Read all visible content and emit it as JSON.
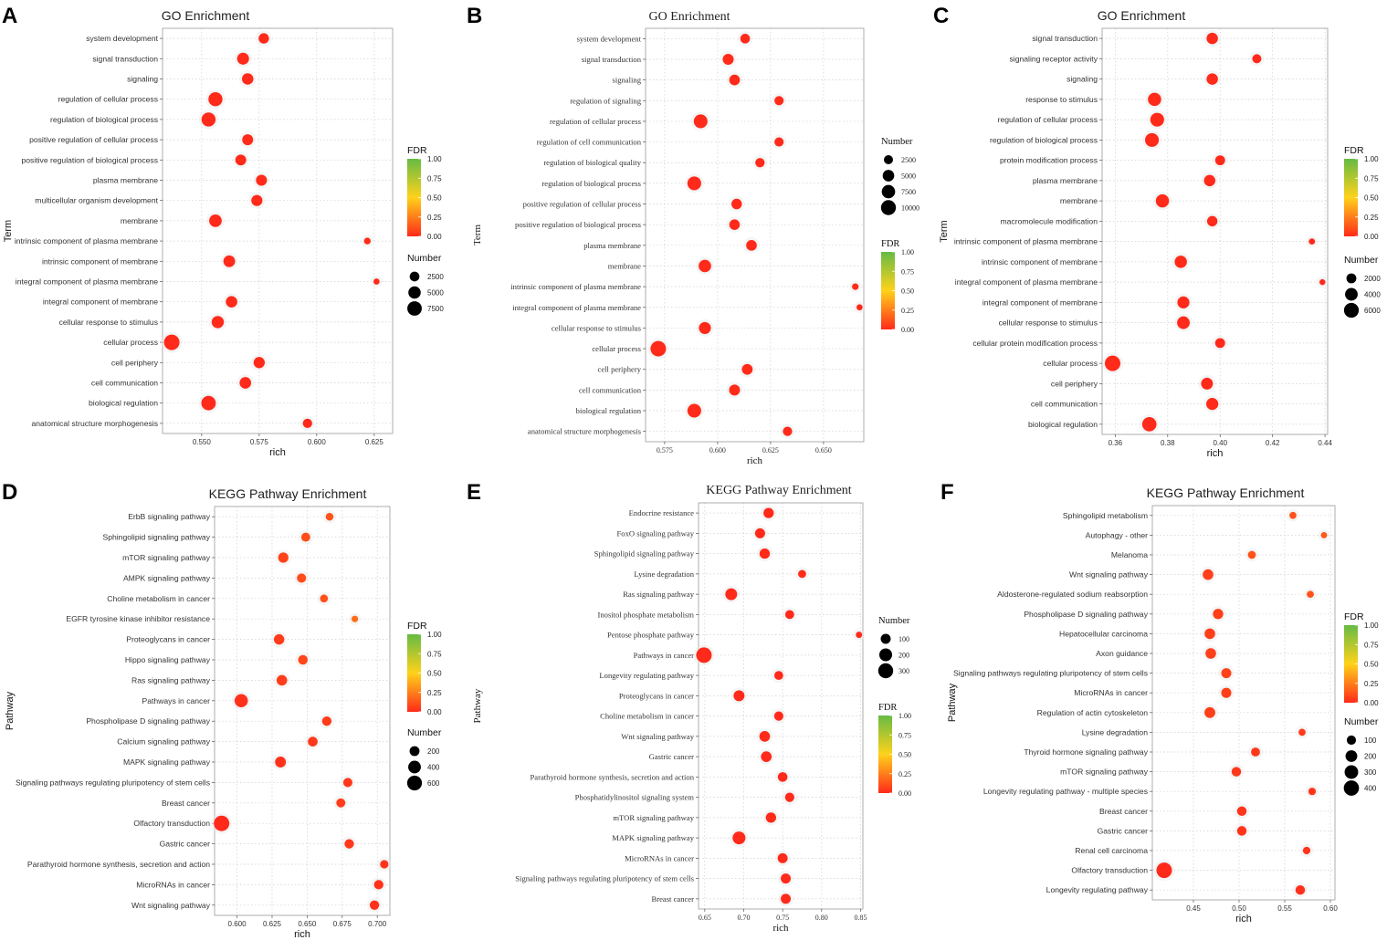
{
  "colors": {
    "high": "#66bb44",
    "mid": "#ffd21a",
    "low": "#ff2a1a"
  },
  "panels": [
    {
      "letter": "A",
      "font": "sans",
      "chart_data": {
        "type": "scatter",
        "title": "GO Enrichment",
        "xlabel": "rich",
        "ylabel": "Term",
        "xlim": [
          0.533,
          0.633
        ],
        "xticks": [
          0.55,
          0.575,
          0.6,
          0.625
        ],
        "xtick_labels": [
          "0.550",
          "0.575",
          "0.600",
          "0.625"
        ],
        "categories": [
          "system development",
          "signal transduction",
          "signaling",
          "regulation of cellular process",
          "regulation of biological process",
          "positive regulation of cellular process",
          "positive regulation of biological process",
          "plasma membrane",
          "multicellular organism development",
          "membrane",
          "intrinsic component of plasma membrane",
          "intrinsic component of membrane",
          "integral component of plasma membrane",
          "integral component of membrane",
          "cellular response to stimulus",
          "cellular process",
          "cell periphery",
          "cell communication",
          "biological regulation",
          "anatomical structure morphogenesis"
        ],
        "rich": [
          0.577,
          0.568,
          0.57,
          0.556,
          0.553,
          0.57,
          0.567,
          0.576,
          0.574,
          0.556,
          0.622,
          0.562,
          0.626,
          0.563,
          0.557,
          0.537,
          0.575,
          0.569,
          0.553,
          0.596
        ],
        "number": [
          3000,
          4500,
          4000,
          7000,
          7000,
          3500,
          3500,
          3600,
          3700,
          5200,
          700,
          4300,
          500,
          4000,
          4800,
          9000,
          3800,
          4100,
          7500,
          2200
        ],
        "fdr": [
          0.0,
          0.0,
          0.0,
          0.0,
          0.0,
          0.0,
          0.0,
          0.0,
          0.0,
          0.0,
          0.0,
          0.0,
          0.0,
          0.0,
          0.0,
          0.0,
          0.0,
          0.0,
          0.0,
          0.0
        ],
        "legend_fdr": {
          "title": "FDR",
          "ticks": [
            "1.00",
            "0.75",
            "0.50",
            "0.25",
            "0.00"
          ]
        },
        "legend_size": {
          "title": "Number",
          "values": [
            2500,
            5000,
            7500
          ],
          "labels": [
            "2500",
            "5000",
            "7500"
          ]
        }
      }
    },
    {
      "letter": "B",
      "font": "serif",
      "chart_data": {
        "type": "scatter",
        "title": "GO Enrichment",
        "xlabel": "rich",
        "ylabel": "Term",
        "xlim": [
          0.566,
          0.669
        ],
        "xticks": [
          0.575,
          0.6,
          0.625,
          0.65
        ],
        "xtick_labels": [
          "0.575",
          "0.600",
          "0.625",
          "0.650"
        ],
        "categories": [
          "system development",
          "signal transduction",
          "signaling",
          "regulation of signaling",
          "regulation of cellular process",
          "regulation of cell communication",
          "regulation of biological quality",
          "regulation of biological process",
          "positive regulation of cellular process",
          "positive regulation of biological process",
          "plasma membrane",
          "membrane",
          "intrinsic component of plasma membrane",
          "integral component of plasma membrane",
          "cellular response to stimulus",
          "cellular process",
          "cell periphery",
          "cell communication",
          "biological regulation",
          "anatomical structure morphogenesis"
        ],
        "rich": [
          0.613,
          0.605,
          0.608,
          0.629,
          0.592,
          0.629,
          0.62,
          0.589,
          0.609,
          0.608,
          0.616,
          0.594,
          0.665,
          0.667,
          0.594,
          0.572,
          0.614,
          0.608,
          0.589,
          0.633
        ],
        "number": [
          3000,
          4300,
          4000,
          2600,
          8000,
          2600,
          2700,
          8000,
          3800,
          3800,
          4000,
          6200,
          800,
          600,
          5600,
          11000,
          4100,
          4300,
          8000,
          2700
        ],
        "fdr": [
          0.0,
          0.0,
          0.0,
          0.0,
          0.0,
          0.0,
          0.0,
          0.0,
          0.0,
          0.0,
          0.0,
          0.0,
          0.0,
          0.0,
          0.0,
          0.0,
          0.0,
          0.0,
          0.0,
          0.0
        ],
        "legend_fdr": {
          "title": "FDR",
          "ticks": [
            "1.00",
            "0.75",
            "0.50",
            "0.25",
            "0.00"
          ]
        },
        "legend_size": {
          "title": "Number",
          "values": [
            2500,
            5000,
            7500,
            10000
          ],
          "labels": [
            "2500",
            "5000",
            "7500",
            "10000"
          ]
        }
      }
    },
    {
      "letter": "C",
      "font": "sans",
      "chart_data": {
        "type": "scatter",
        "title": "GO Enrichment",
        "xlabel": "rich",
        "ylabel": "Term",
        "xlim": [
          0.355,
          0.441
        ],
        "xticks": [
          0.36,
          0.38,
          0.4,
          0.42,
          0.44
        ],
        "xtick_labels": [
          "0.36",
          "0.38",
          "0.40",
          "0.42",
          "0.44"
        ],
        "categories": [
          "signal transduction",
          "signaling receptor activity",
          "signaling",
          "response to stimulus",
          "regulation of cellular process",
          "regulation of biological process",
          "protein modification process",
          "plasma membrane",
          "membrane",
          "macromolecule modification",
          "intrinsic component of plasma membrane",
          "intrinsic component of membrane",
          "integral component of plasma membrane",
          "integral component of membrane",
          "cellular response to stimulus",
          "cellular protein modification process",
          "cellular process",
          "cell periphery",
          "cell communication",
          "biological regulation"
        ],
        "rich": [
          0.397,
          0.414,
          0.397,
          0.375,
          0.376,
          0.374,
          0.4,
          0.396,
          0.378,
          0.397,
          0.435,
          0.385,
          0.439,
          0.386,
          0.386,
          0.4,
          0.359,
          0.395,
          0.397,
          0.373
        ],
        "number": [
          3000,
          1500,
          3000,
          4500,
          5000,
          5000,
          2000,
          3000,
          4500,
          2300,
          400,
          3700,
          300,
          3500,
          4000,
          2000,
          6800,
          3300,
          3500,
          5500
        ],
        "fdr": [
          0.0,
          0.0,
          0.0,
          0.0,
          0.0,
          0.0,
          0.0,
          0.0,
          0.0,
          0.0,
          0.0,
          0.0,
          0.0,
          0.0,
          0.0,
          0.0,
          0.0,
          0.0,
          0.0,
          0.0
        ],
        "legend_fdr": {
          "title": "FDR",
          "ticks": [
            "1.00",
            "0.75",
            "0.50",
            "0.25",
            "0.00"
          ]
        },
        "legend_size": {
          "title": "Number",
          "values": [
            2000,
            4000,
            6000
          ],
          "labels": [
            "2000",
            "4000",
            "6000"
          ]
        }
      }
    },
    {
      "letter": "D",
      "font": "sans",
      "chart_data": {
        "type": "scatter",
        "title": "KEGG Pathway Enrichment",
        "xlabel": "rich",
        "ylabel": "Pathway",
        "xlim": [
          0.584,
          0.709
        ],
        "xticks": [
          0.6,
          0.625,
          0.65,
          0.675,
          0.7
        ],
        "xtick_labels": [
          "0.600",
          "0.625",
          "0.650",
          "0.675",
          "0.700"
        ],
        "categories": [
          "ErbB signaling pathway",
          "Sphingolipid signaling pathway",
          "mTOR signaling pathway",
          "AMPK signaling pathway",
          "Choline metabolism in cancer",
          "EGFR tyrosine kinase inhibitor resistance",
          "Proteoglycans in cancer",
          "Hippo signaling pathway",
          "Ras signaling pathway",
          "Pathways in cancer",
          "Phospholipase D signaling pathway",
          "Calcium signaling pathway",
          "MAPK signaling pathway",
          "Signaling pathways regulating pluripotency of stem cells",
          "Breast cancer",
          "Olfactory transduction",
          "Gastric cancer",
          "Parathyroid hormone synthesis, secretion and action",
          "MicroRNAs in cancer",
          "Wnt signaling pathway"
        ],
        "rich": [
          0.666,
          0.649,
          0.633,
          0.646,
          0.662,
          0.684,
          0.63,
          0.647,
          0.632,
          0.603,
          0.664,
          0.654,
          0.631,
          0.679,
          0.674,
          0.589,
          0.68,
          0.705,
          0.701,
          0.698
        ],
        "number": [
          90,
          150,
          220,
          160,
          100,
          50,
          230,
          180,
          240,
          450,
          170,
          190,
          260,
          160,
          150,
          680,
          170,
          120,
          170,
          170
        ],
        "fdr": [
          0.12,
          0.1,
          0.07,
          0.1,
          0.12,
          0.2,
          0.05,
          0.08,
          0.05,
          0.02,
          0.05,
          0.04,
          0.02,
          0.04,
          0.05,
          0.0,
          0.04,
          0.03,
          0.02,
          0.02
        ],
        "legend_fdr": {
          "title": "FDR",
          "ticks": [
            "1.00",
            "0.75",
            "0.50",
            "0.25",
            "0.00"
          ]
        },
        "legend_size": {
          "title": "Number",
          "values": [
            200,
            400,
            600
          ],
          "labels": [
            "200",
            "400",
            "600"
          ]
        }
      }
    },
    {
      "letter": "E",
      "font": "serif",
      "chart_data": {
        "type": "scatter",
        "title": "KEGG Pathway Enrichment",
        "xlabel": "rich",
        "ylabel": "Pathway",
        "xlim": [
          0.642,
          0.853
        ],
        "xticks": [
          0.65,
          0.7,
          0.75,
          0.8,
          0.85
        ],
        "xtick_labels": [
          "0.65",
          "0.70",
          "0.75",
          "0.80",
          "0.85"
        ],
        "categories": [
          "Endocrine resistance",
          "FoxO signaling pathway",
          "Sphingolipid signaling pathway",
          "Lysine degradation",
          "Ras signaling pathway",
          "Inositol phosphate metabolism",
          "Pentose phosphate pathway",
          "Pathways in cancer",
          "Longevity regulating pathway",
          "Proteoglycans in cancer",
          "Choline metabolism in cancer",
          "Wnt signaling pathway",
          "Gastric cancer",
          "Parathyroid hormone synthesis, secretion and action",
          "Phosphatidylinositol signaling system",
          "mTOR signaling pathway",
          "MAPK signaling pathway",
          "MicroRNAs in cancer",
          "Signaling pathways regulating pluripotency of stem cells",
          "Breast cancer"
        ],
        "rich": [
          0.732,
          0.721,
          0.727,
          0.775,
          0.684,
          0.759,
          0.848,
          0.649,
          0.745,
          0.694,
          0.745,
          0.727,
          0.729,
          0.75,
          0.759,
          0.735,
          0.694,
          0.75,
          0.754,
          0.754
        ],
        "number": [
          110,
          100,
          110,
          50,
          160,
          70,
          20,
          330,
          70,
          130,
          80,
          120,
          120,
          90,
          80,
          110,
          200,
          100,
          100,
          100
        ],
        "fdr": [
          0.0,
          0.0,
          0.0,
          0.0,
          0.0,
          0.0,
          0.0,
          0.0,
          0.0,
          0.0,
          0.0,
          0.0,
          0.0,
          0.0,
          0.0,
          0.0,
          0.0,
          0.0,
          0.0,
          0.0
        ],
        "legend_fdr": {
          "title": "FDR",
          "ticks": [
            "1.00",
            "0.75",
            "0.50",
            "0.25",
            "0.00"
          ]
        },
        "legend_size": {
          "title": "Number",
          "values": [
            100,
            200,
            300
          ],
          "labels": [
            "100",
            "200",
            "300"
          ]
        }
      }
    },
    {
      "letter": "F",
      "font": "sans",
      "chart_data": {
        "type": "scatter",
        "title": "KEGG Pathway Enrichment",
        "xlabel": "rich",
        "ylabel": "Pathway",
        "xlim": [
          0.405,
          0.605
        ],
        "xticks": [
          0.45,
          0.5,
          0.55,
          0.6
        ],
        "xtick_labels": [
          "0.45",
          "0.50",
          "0.55",
          "0.60"
        ],
        "categories": [
          "Sphingolipid metabolism",
          "Autophagy - other",
          "Melanoma",
          "Wnt signaling pathway",
          "Aldosterone-regulated sodium reabsorption",
          "Phospholipase D signaling pathway",
          "Hepatocellular carcinoma",
          "Axon guidance",
          "Signaling pathways regulating pluripotency of stem cells",
          "MicroRNAs in cancer",
          "Regulation of actin cytoskeleton",
          "Lysine degradation",
          "Thyroid hormone signaling pathway",
          "mTOR signaling pathway",
          "Longevity regulating pathway - multiple species",
          "Breast cancer",
          "Gastric cancer",
          "Renal cell carcinoma",
          "Olfactory transduction",
          "Longevity regulating pathway"
        ],
        "rich": [
          0.559,
          0.593,
          0.514,
          0.466,
          0.578,
          0.477,
          0.468,
          0.469,
          0.486,
          0.486,
          0.468,
          0.569,
          0.518,
          0.497,
          0.58,
          0.503,
          0.503,
          0.574,
          0.418,
          0.567
        ],
        "number": [
          40,
          25,
          60,
          150,
          40,
          140,
          150,
          150,
          130,
          130,
          160,
          40,
          90,
          110,
          50,
          110,
          110,
          50,
          420,
          110
        ],
        "fdr": [
          0.12,
          0.14,
          0.12,
          0.06,
          0.12,
          0.06,
          0.06,
          0.06,
          0.07,
          0.06,
          0.06,
          0.05,
          0.04,
          0.04,
          0.03,
          0.03,
          0.03,
          0.03,
          0.0,
          0.02
        ],
        "legend_fdr": {
          "title": "FDR",
          "ticks": [
            "1.00",
            "0.75",
            "0.50",
            "0.25",
            "0.00"
          ]
        },
        "legend_size": {
          "title": "Number",
          "values": [
            100,
            200,
            300,
            400
          ],
          "labels": [
            "100",
            "200",
            "300",
            "400"
          ]
        }
      }
    }
  ]
}
